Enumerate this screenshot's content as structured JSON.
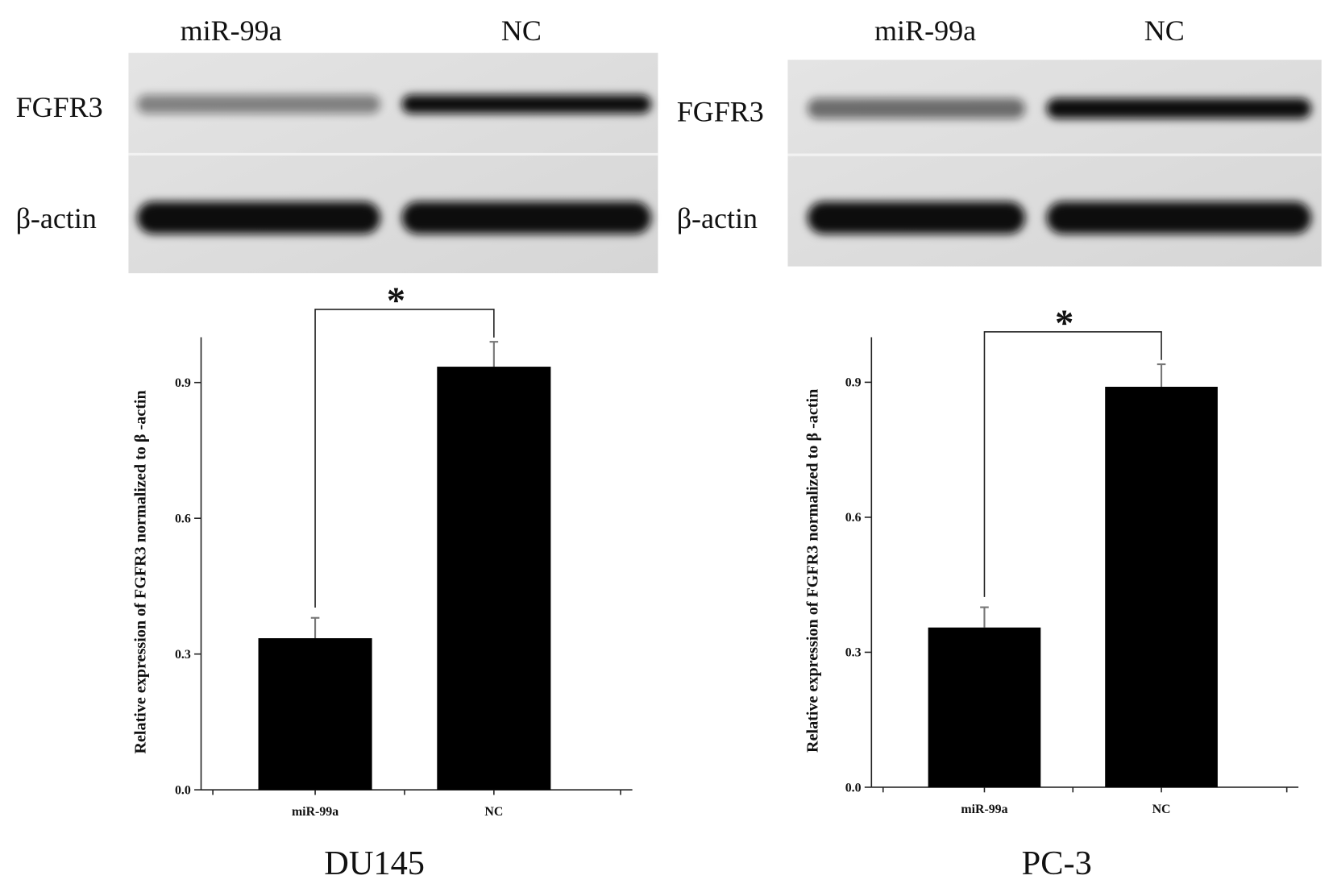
{
  "chart_data": [
    {
      "type": "bar",
      "title": "DU145",
      "ylabel": "Relative expression of FGFR3 normalized to β -actin",
      "categories": [
        "miR-99a",
        "NC"
      ],
      "values": [
        0.335,
        0.935
      ],
      "errors": [
        0.045,
        0.055
      ],
      "color": "#000000",
      "ylim": [
        0,
        1.0
      ],
      "yticks": [
        {
          "value": 0,
          "label": "0.0"
        },
        0.3,
        0.6,
        0.9
      ],
      "annotation": "*",
      "blot": {
        "lanes": [
          "miR-99a",
          "NC"
        ],
        "rows": [
          "FGFR3",
          "β-actin"
        ]
      }
    },
    {
      "type": "bar",
      "title": "PC-3",
      "ylabel": "Relative expression of FGFR3 normalized to β -actin",
      "categories": [
        "miR-99a",
        "NC"
      ],
      "values": [
        0.355,
        0.89
      ],
      "errors": [
        0.045,
        0.05
      ],
      "color": "#000000",
      "ylim": [
        0,
        1.0
      ],
      "yticks": [
        {
          "value": 0,
          "label": "0.0"
        },
        0.3,
        0.6,
        0.9
      ],
      "annotation": "*",
      "blot": {
        "lanes": [
          "miR-99a",
          "NC"
        ],
        "rows": [
          "FGFR3",
          "β-actin"
        ]
      }
    }
  ]
}
